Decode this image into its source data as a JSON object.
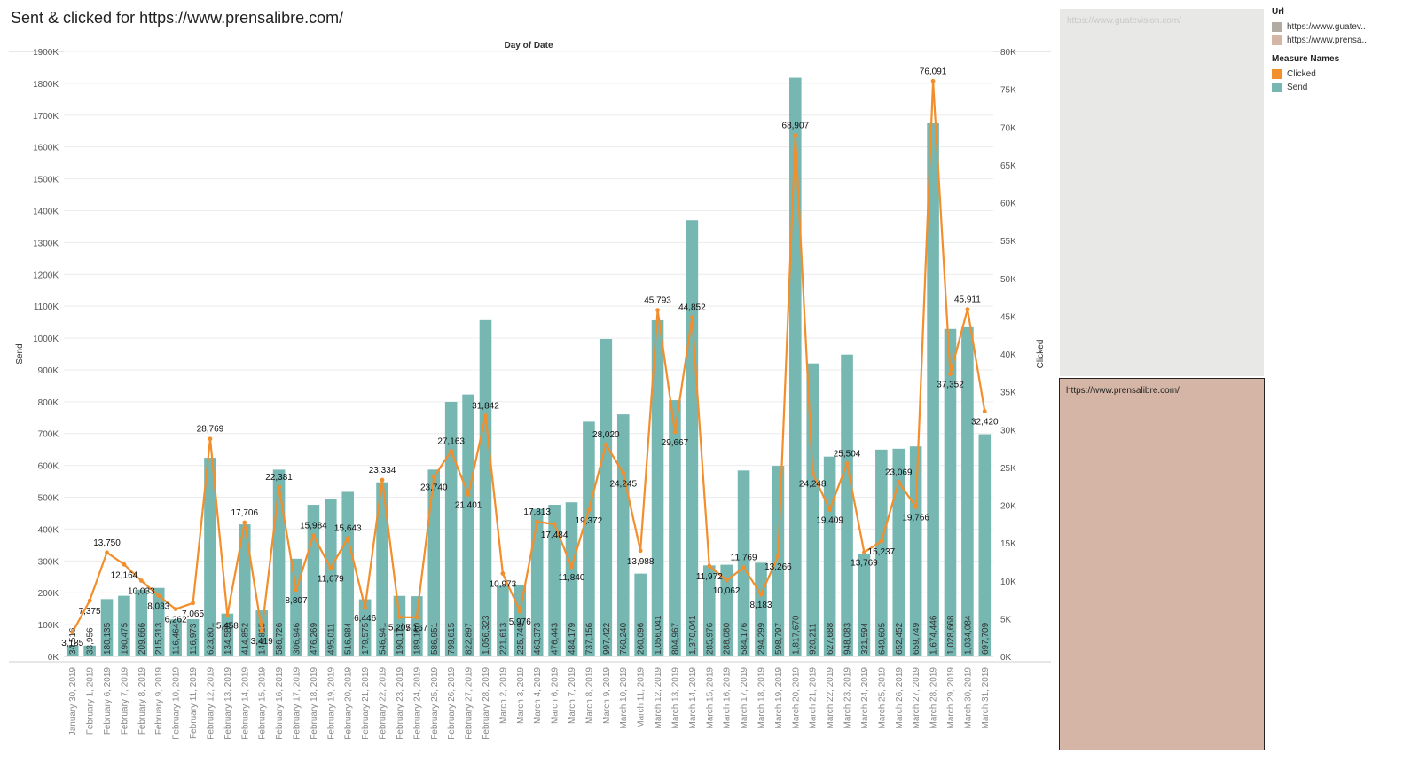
{
  "page_title": "Sent & clicked for https://www.prensalibre.com/",
  "filter": {
    "gray_label": "https://www.guatevision.com/",
    "selected_label": "https://www.prensalibre.com/"
  },
  "legend": {
    "url_title": "Url",
    "url_items": [
      {
        "label": "https://www.guatev..",
        "color": "#b1aba3"
      },
      {
        "label": "https://www.prensa..",
        "color": "#d5b6a6"
      }
    ],
    "measure_title": "Measure Names",
    "measure_items": [
      {
        "label": "Clicked",
        "color": "#f28e2b"
      },
      {
        "label": "Send",
        "color": "#76b7b2"
      }
    ]
  },
  "chart_data": {
    "type": "bar",
    "title": "Sent & clicked for https://www.prensalibre.com/",
    "xlabel": "Day of Date",
    "ylabel": "Send",
    "y2label": "Clicked",
    "ylim": [
      0,
      1900000
    ],
    "y2lim": [
      0,
      80000
    ],
    "yticks": [
      "0K",
      "100K",
      "200K",
      "300K",
      "400K",
      "500K",
      "600K",
      "700K",
      "800K",
      "900K",
      "1000K",
      "1100K",
      "1200K",
      "1300K",
      "1400K",
      "1500K",
      "1600K",
      "1700K",
      "1800K",
      "1900K"
    ],
    "y2ticks": [
      "0K",
      "5K",
      "10K",
      "15K",
      "20K",
      "25K",
      "30K",
      "35K",
      "40K",
      "45K",
      "50K",
      "55K",
      "60K",
      "65K",
      "70K",
      "75K",
      "80K"
    ],
    "categories": [
      "January 30, 2019",
      "February 1, 2019",
      "February 6, 2019",
      "February 7, 2019",
      "February 8, 2019",
      "February 9, 2019",
      "February 10, 2019",
      "February 11, 2019",
      "February 12, 2019",
      "February 13, 2019",
      "February 14, 2019",
      "February 15, 2019",
      "February 16, 2019",
      "February 17, 2019",
      "February 18, 2019",
      "February 19, 2019",
      "February 20, 2019",
      "February 21, 2019",
      "February 22, 2019",
      "February 23, 2019",
      "February 24, 2019",
      "February 25, 2019",
      "February 26, 2019",
      "February 27, 2019",
      "February 28, 2019",
      "March 2, 2019",
      "March 3, 2019",
      "March 4, 2019",
      "March 6, 2019",
      "March 7, 2019",
      "March 8, 2019",
      "March 9, 2019",
      "March 10, 2019",
      "March 11, 2019",
      "March 12, 2019",
      "March 13, 2019",
      "March 14, 2019",
      "March 15, 2019",
      "March 16, 2019",
      "March 17, 2019",
      "March 18, 2019",
      "March 19, 2019",
      "March 20, 2019",
      "March 21, 2019",
      "March 22, 2019",
      "March 23, 2019",
      "March 24, 2019",
      "March 25, 2019",
      "March 26, 2019",
      "March 27, 2019",
      "March 28, 2019",
      "March 29, 2019",
      "March 30, 2019",
      "March 31, 2019"
    ],
    "series": [
      {
        "name": "Send",
        "color": "#76b7b2",
        "values": [
          34516,
          33956,
          180135,
          190475,
          209666,
          215313,
          116464,
          116973,
          623801,
          134586,
          414852,
          144815,
          586726,
          306946,
          476269,
          495011,
          516984,
          179575,
          546941,
          190171,
          189160,
          586951,
          799615,
          822897,
          1056323,
          221613,
          225749,
          463373,
          476443,
          484179,
          737156,
          997422,
          760240,
          260096,
          1056041,
          804967,
          1370041,
          285976,
          288080,
          584176,
          294299,
          598797,
          1817670,
          920211,
          627688,
          948083,
          321594,
          649605,
          652452,
          659749,
          1674446,
          1028668,
          1034084,
          697709
        ],
        "labels": [
          "34,516",
          "33,956",
          "180,135",
          "190,475",
          "209,666",
          "215,313",
          "116,464",
          "116,973",
          "623,801",
          "134,586",
          "414,852",
          "144,815",
          "586,726",
          "306,946",
          "476,269",
          "495,011",
          "516,984",
          "179,575",
          "546,941",
          "190,171",
          "189,160",
          "586,951",
          "799,615",
          "822,897",
          "1,056,323",
          "221,613",
          "225,749",
          "463,373",
          "476,443",
          "484,179",
          "737,156",
          "997,422",
          "760,240",
          "260,096",
          "1,056,041",
          "804,967",
          "1,370,041",
          "285,976",
          "288,080",
          "584,176",
          "294,299",
          "598,797",
          "1,817,670",
          "920,211",
          "627,688",
          "948,083",
          "321,594",
          "649,605",
          "652,452",
          "659,749",
          "1,674,446",
          "1,028,668",
          "1,034,084",
          "697,709"
        ]
      },
      {
        "name": "Clicked",
        "color": "#f28e2b",
        "values": [
          3185,
          7375,
          13750,
          12164,
          10033,
          8033,
          6262,
          7065,
          28769,
          5458,
          17706,
          3419,
          22381,
          8807,
          15984,
          11679,
          15643,
          6446,
          23334,
          5207,
          5167,
          23740,
          27163,
          21401,
          31842,
          10973,
          5976,
          17813,
          17484,
          11840,
          19372,
          28020,
          24245,
          13988,
          45793,
          29667,
          44852,
          11972,
          10062,
          11769,
          8183,
          13266,
          68907,
          24248,
          19409,
          25504,
          13769,
          15237,
          23069,
          19766,
          76091,
          37352,
          45911,
          32420
        ],
        "labels": [
          "3,185",
          "7,375",
          "13,750",
          "12,164",
          "10,033",
          "8,033",
          "6,262",
          "7,065",
          "28,769",
          "5,458",
          "17,706",
          "3,419",
          "22,381",
          "8,807",
          "15,984",
          "11,679",
          "15,643",
          "6,446",
          "23,334",
          "5,207",
          "5,167",
          "23,740",
          "27,163",
          "21,401",
          "31,842",
          "10,973",
          "5,976",
          "17,813",
          "17,484",
          "11,840",
          "19,372",
          "28,020",
          "24,245",
          "13,988",
          "45,793",
          "29,667",
          "44,852",
          "11,972",
          "10,062",
          "11,769",
          "8,183",
          "13,266",
          "68,907",
          "24,248",
          "19,409",
          "25,504",
          "13,769",
          "15,237",
          "23,069",
          "19,766",
          "76,091",
          "37,352",
          "45,911",
          "32,420"
        ]
      }
    ]
  }
}
